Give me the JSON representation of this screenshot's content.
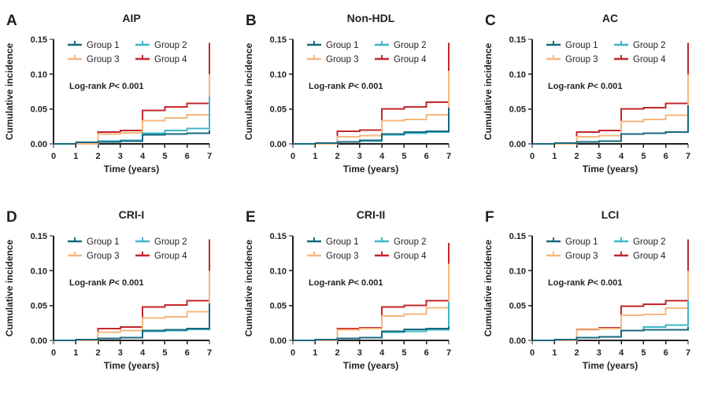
{
  "figure": {
    "background": "#ffffff",
    "axis_color": "#231f20",
    "annotation": {
      "prefix": "Log-rank",
      "p": "P",
      "rest": "< 0.001"
    },
    "axes": {
      "ylabel": "Cumulative incidence",
      "xlabel": "Time (years)",
      "yticks": [
        "0.00",
        "0.05",
        "0.10",
        "0.15"
      ],
      "ytick_values": [
        0,
        0.05,
        0.1,
        0.15
      ],
      "xticks": [
        "0",
        "1",
        "2",
        "3",
        "4",
        "5",
        "6",
        "7"
      ],
      "xtick_values": [
        0,
        1,
        2,
        3,
        4,
        5,
        6,
        7
      ],
      "ylim": [
        0,
        0.15
      ],
      "xlim": [
        0,
        7
      ]
    },
    "groups": [
      {
        "name": "Group 1",
        "color": "#16697f"
      },
      {
        "name": "Group 2",
        "color": "#3eb5c9"
      },
      {
        "name": "Group 3",
        "color": "#f6b77e"
      },
      {
        "name": "Group 4",
        "color": "#c1272c"
      }
    ],
    "legend_layout": "2x2",
    "draw_order": [
      "Group 4",
      "Group 3",
      "Group 2",
      "Group 1"
    ]
  },
  "chart_data": [
    {
      "panel_label": "A",
      "title": "AIP",
      "type": "line",
      "x_years": [
        0,
        1,
        2,
        3,
        4,
        5,
        6
      ],
      "series": [
        {
          "name": "Group 1",
          "levels": [
            0.0,
            0.002,
            0.003,
            0.004,
            0.013,
            0.014,
            0.015
          ],
          "end_value": 0.02
        },
        {
          "name": "Group 2",
          "levels": [
            0.0,
            0.002,
            0.004,
            0.005,
            0.015,
            0.019,
            0.022
          ],
          "end_value": 0.068
        },
        {
          "name": "Group 3",
          "levels": [
            0.0,
            0.0,
            0.014,
            0.016,
            0.033,
            0.037,
            0.042
          ],
          "end_value": 0.1
        },
        {
          "name": "Group 4",
          "levels": [
            0.0,
            0.0,
            0.017,
            0.019,
            0.048,
            0.053,
            0.058
          ],
          "end_value": 0.145
        }
      ]
    },
    {
      "panel_label": "B",
      "title": "Non-HDL",
      "type": "line",
      "x_years": [
        0,
        1,
        2,
        3,
        4,
        5,
        6
      ],
      "series": [
        {
          "name": "Group 1",
          "levels": [
            0.0,
            0.001,
            0.003,
            0.005,
            0.014,
            0.017,
            0.018
          ],
          "end_value": 0.052
        },
        {
          "name": "Group 2",
          "levels": [
            0.0,
            0.001,
            0.003,
            0.004,
            0.013,
            0.015,
            0.017
          ],
          "end_value": 0.048
        },
        {
          "name": "Group 3",
          "levels": [
            0.0,
            0.0,
            0.01,
            0.012,
            0.033,
            0.035,
            0.042
          ],
          "end_value": 0.105
        },
        {
          "name": "Group 4",
          "levels": [
            0.0,
            0.0,
            0.018,
            0.02,
            0.05,
            0.053,
            0.06
          ],
          "end_value": 0.145
        }
      ]
    },
    {
      "panel_label": "C",
      "title": "AC",
      "type": "line",
      "x_years": [
        0,
        1,
        2,
        3,
        4,
        5,
        6
      ],
      "series": [
        {
          "name": "Group 1",
          "levels": [
            0.0,
            0.001,
            0.003,
            0.004,
            0.014,
            0.015,
            0.017
          ],
          "end_value": 0.055
        },
        {
          "name": "Group 2",
          "levels": [
            0.0,
            0.001,
            0.003,
            0.004,
            0.014,
            0.015,
            0.017
          ],
          "end_value": 0.05
        },
        {
          "name": "Group 3",
          "levels": [
            0.0,
            0.0,
            0.01,
            0.012,
            0.032,
            0.035,
            0.041
          ],
          "end_value": 0.1
        },
        {
          "name": "Group 4",
          "levels": [
            0.0,
            0.0,
            0.017,
            0.019,
            0.05,
            0.052,
            0.058
          ],
          "end_value": 0.145
        }
      ]
    },
    {
      "panel_label": "D",
      "title": "CRI-I",
      "type": "line",
      "x_years": [
        0,
        1,
        2,
        3,
        4,
        5,
        6
      ],
      "series": [
        {
          "name": "Group 1",
          "levels": [
            0.0,
            0.001,
            0.003,
            0.004,
            0.014,
            0.015,
            0.017
          ],
          "end_value": 0.053
        },
        {
          "name": "Group 2",
          "levels": [
            0.0,
            0.001,
            0.003,
            0.004,
            0.013,
            0.014,
            0.016
          ],
          "end_value": 0.05
        },
        {
          "name": "Group 3",
          "levels": [
            0.0,
            0.0,
            0.012,
            0.014,
            0.032,
            0.034,
            0.041
          ],
          "end_value": 0.1
        },
        {
          "name": "Group 4",
          "levels": [
            0.0,
            0.0,
            0.017,
            0.019,
            0.048,
            0.051,
            0.057
          ],
          "end_value": 0.145
        }
      ]
    },
    {
      "panel_label": "E",
      "title": "CRI-II",
      "type": "line",
      "x_years": [
        0,
        1,
        2,
        3,
        4,
        5,
        6
      ],
      "series": [
        {
          "name": "Group 1",
          "levels": [
            0.0,
            0.001,
            0.003,
            0.004,
            0.013,
            0.016,
            0.017
          ],
          "end_value": 0.02
        },
        {
          "name": "Group 2",
          "levels": [
            0.0,
            0.001,
            0.003,
            0.004,
            0.012,
            0.013,
            0.015
          ],
          "end_value": 0.055
        },
        {
          "name": "Group 3",
          "levels": [
            0.0,
            0.0,
            0.015,
            0.017,
            0.035,
            0.038,
            0.047
          ],
          "end_value": 0.11
        },
        {
          "name": "Group 4",
          "levels": [
            0.0,
            0.0,
            0.017,
            0.018,
            0.048,
            0.05,
            0.057
          ],
          "end_value": 0.14
        }
      ]
    },
    {
      "panel_label": "F",
      "title": "LCI",
      "type": "line",
      "x_years": [
        0,
        1,
        2,
        3,
        4,
        5,
        6
      ],
      "series": [
        {
          "name": "Group 1",
          "levels": [
            0.0,
            0.001,
            0.004,
            0.005,
            0.014,
            0.015,
            0.015
          ],
          "end_value": 0.02
        },
        {
          "name": "Group 2",
          "levels": [
            0.0,
            0.001,
            0.004,
            0.005,
            0.014,
            0.019,
            0.022
          ],
          "end_value": 0.058
        },
        {
          "name": "Group 3",
          "levels": [
            0.0,
            0.0,
            0.015,
            0.017,
            0.036,
            0.037,
            0.046
          ],
          "end_value": 0.1
        },
        {
          "name": "Group 4",
          "levels": [
            0.0,
            0.0,
            0.016,
            0.018,
            0.049,
            0.052,
            0.057
          ],
          "end_value": 0.145
        }
      ]
    }
  ]
}
